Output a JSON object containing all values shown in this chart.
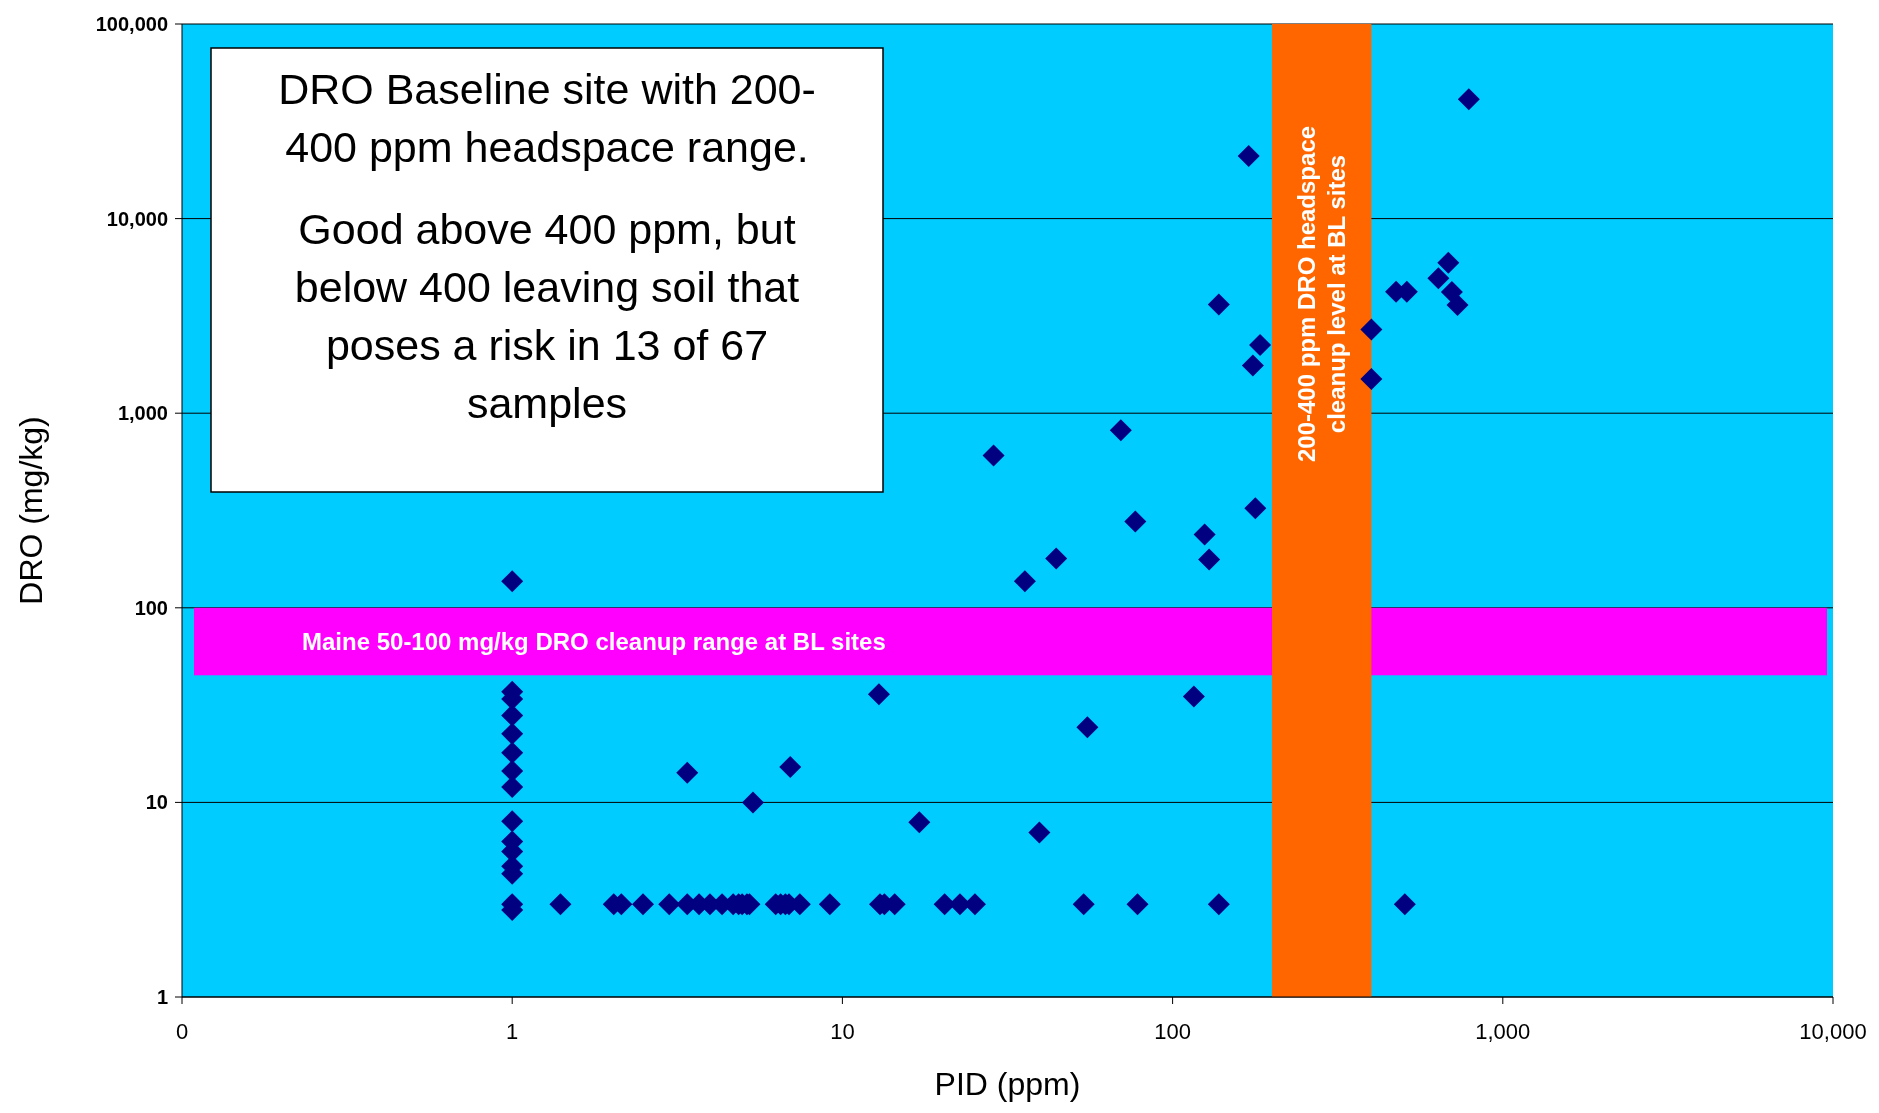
{
  "chart_data": {
    "type": "scatter",
    "xlabel": "PID (ppm)",
    "ylabel": "DRO (mg/kg)",
    "log": "xy",
    "xlim": [
      0.1,
      10000
    ],
    "xticks": [
      {
        "value": 0.1,
        "label": "0"
      },
      1,
      10,
      100,
      {
        "value": 1000,
        "label": "1,000"
      },
      {
        "value": 10000,
        "label": "10,000"
      }
    ],
    "ylim": [
      1,
      100000
    ],
    "yticks": [
      1,
      10,
      100,
      {
        "value": 1000,
        "label": "1,000"
      },
      {
        "value": 10000,
        "label": "10,000"
      },
      {
        "value": 100000,
        "label": "100,000"
      }
    ],
    "grid": "y",
    "marker": "diamond",
    "series": [
      {
        "color": "#000080",
        "x": [
          1,
          1,
          1,
          1,
          1,
          1,
          1,
          1,
          1,
          1,
          1,
          1,
          1,
          1,
          1,
          1.4,
          2.03,
          2.14,
          2.49,
          2.99,
          3.39,
          3.68,
          3.97,
          4.32,
          4.67,
          4.85,
          4.97,
          5.14,
          5.23,
          6.28,
          6.5,
          6.72,
          6.89,
          7.43,
          9.16,
          13,
          13.4,
          14.4,
          20.4,
          22.7,
          25.2,
          53.8,
          78.3,
          138,
          505,
          3.39,
          6.95,
          5.36,
          12.9,
          17.1,
          39.5,
          55.2,
          116,
          28.7,
          35.7,
          44.4,
          69.7,
          77.1,
          125,
          129,
          178,
          170,
          138,
          175,
          184,
          400,
          400,
          475,
          512,
          684,
          638,
          701,
          729,
          789
        ],
        "values": [
          137,
          37,
          34,
          28,
          22.5,
          18,
          14.5,
          12,
          8,
          6.3,
          5.6,
          4.7,
          4.3,
          3,
          2.8,
          3,
          3,
          3,
          3,
          3,
          3,
          3,
          3,
          3,
          3,
          3,
          3,
          3,
          3,
          3,
          3,
          3,
          3,
          3,
          3,
          3,
          3,
          3,
          3,
          3,
          3,
          3,
          3,
          3,
          3,
          14.2,
          15.2,
          10,
          36,
          7.9,
          7,
          24.3,
          35,
          607,
          137,
          179,
          818,
          278,
          238,
          177,
          325,
          21000,
          3620,
          1760,
          2240,
          2690,
          1500,
          4210,
          4210,
          5930,
          4930,
          4190,
          3600,
          41000
        ]
      }
    ],
    "bands": [
      {
        "axis": "y",
        "from": 45,
        "to": 100,
        "label": "Maine 50-100 mg/kg DRO cleanup range at BL sites",
        "color": "#ff00ff"
      },
      {
        "axis": "x",
        "from": 200,
        "to": 400,
        "label": "200-400 ppm DRO headspace cleanup level at BL sites",
        "color": "#ff6600"
      }
    ],
    "annotations": [
      "DRO Baseline site with 200-400 ppm headspace range.",
      "Good above 400 ppm, but below 400 leaving soil that poses a risk in 13 of 67 samples"
    ]
  }
}
